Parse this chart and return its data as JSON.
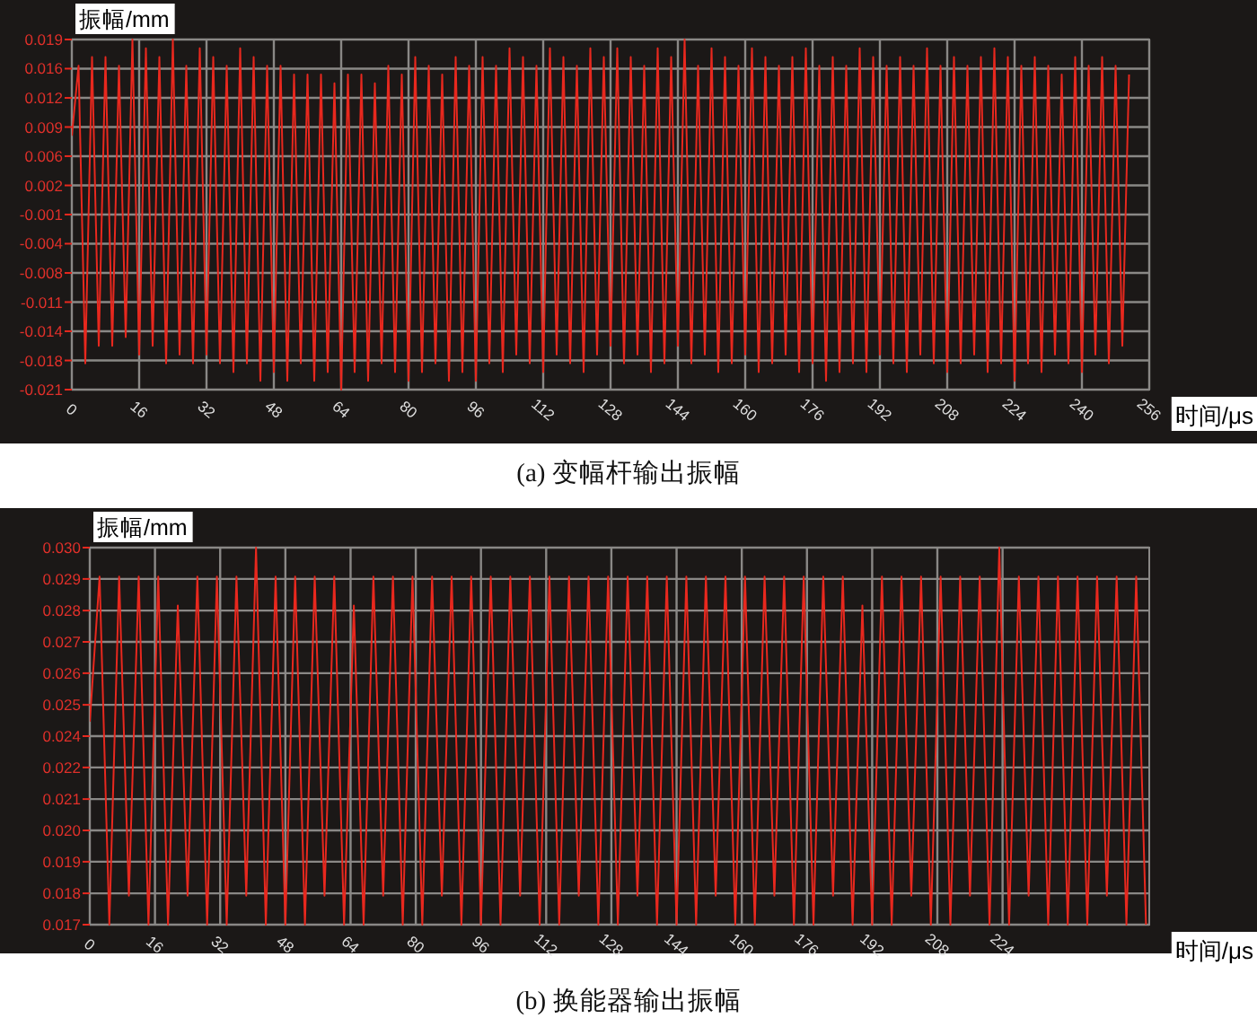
{
  "chart_data": [
    {
      "type": "line",
      "title": "(a) 变幅杆输出振幅",
      "xlabel": "时间/μs",
      "ylabel": "振幅/mm",
      "grid": true,
      "xlim": [
        0,
        256
      ],
      "ylim": [
        -0.021,
        0.019
      ],
      "xticks": [
        0,
        16,
        32,
        48,
        64,
        80,
        96,
        112,
        128,
        144,
        160,
        176,
        192,
        208,
        224,
        240,
        256
      ],
      "yticks": [
        {
          "value": -0.021,
          "label": "-0.021"
        },
        {
          "value": -0.01767,
          "label": "-0.018"
        },
        {
          "value": -0.01433,
          "label": "-0.014"
        },
        {
          "value": -0.011,
          "label": "-0.011"
        },
        {
          "value": -0.00767,
          "label": "-0.008"
        },
        {
          "value": -0.00433,
          "label": "-0.004"
        },
        {
          "value": -0.001,
          "label": "-0.001"
        },
        {
          "value": 0.00233,
          "label": "0.002"
        },
        {
          "value": 0.00567,
          "label": "0.006"
        },
        {
          "value": 0.009,
          "label": "0.009"
        },
        {
          "value": 0.01233,
          "label": "0.012"
        },
        {
          "value": 0.01567,
          "label": "0.016"
        },
        {
          "value": 0.019,
          "label": "0.019"
        }
      ],
      "x": [
        0,
        1.6,
        3.2,
        4.8,
        6.4,
        8,
        9.6,
        11.2,
        12.8,
        14.4,
        16,
        17.6,
        19.2,
        20.8,
        22.4,
        24,
        25.6,
        27.2,
        28.8,
        30.4,
        32,
        33.6,
        35.2,
        36.8,
        38.4,
        40,
        41.6,
        43.2,
        44.8,
        46.4,
        48,
        49.6,
        51.2,
        52.8,
        54.4,
        56,
        57.6,
        59.2,
        60.8,
        62.4,
        64,
        65.6,
        67.2,
        68.8,
        70.4,
        72,
        73.6,
        75.2,
        76.8,
        78.4,
        80,
        81.6,
        83.2,
        84.8,
        86.4,
        88,
        89.6,
        91.2,
        92.8,
        94.4,
        96,
        97.6,
        99.2,
        100.8,
        102.4,
        104,
        105.6,
        107.2,
        108.8,
        110.4,
        112,
        113.6,
        115.2,
        116.8,
        118.4,
        120,
        121.6,
        123.2,
        124.8,
        126.4,
        128,
        129.6,
        131.2,
        132.8,
        134.4,
        136,
        137.6,
        139.2,
        140.8,
        142.4,
        144,
        145.6,
        147.2,
        148.8,
        150.4,
        152,
        153.6,
        155.2,
        156.8,
        158.4,
        160,
        161.6,
        163.2,
        164.8,
        166.4,
        168,
        169.6,
        171.2,
        172.8,
        174.4,
        176,
        177.6,
        179.2,
        180.8,
        182.4,
        184,
        185.6,
        187.2,
        188.8,
        190.4,
        192,
        193.6,
        195.2,
        196.8,
        198.4,
        200,
        201.6,
        203.2,
        204.8,
        206.4,
        208,
        209.6,
        211.2,
        212.8,
        214.4,
        216,
        217.6,
        219.2,
        220.8,
        222.4,
        224,
        225.6,
        227.2,
        228.8,
        230.4,
        232,
        233.6,
        235.2,
        236.8,
        238.4,
        240,
        241.6,
        243.2,
        244.8,
        246.4,
        248,
        249.6,
        251.2
      ],
      "series": [
        {
          "color": "#e8281e",
          "values": [
            0.008,
            0.016,
            -0.018,
            0.017,
            -0.016,
            0.017,
            -0.016,
            0.016,
            -0.015,
            0.019,
            -0.017,
            0.018,
            -0.016,
            0.017,
            -0.018,
            0.019,
            -0.017,
            0.016,
            -0.018,
            0.018,
            -0.017,
            0.017,
            -0.018,
            0.016,
            -0.019,
            0.018,
            -0.018,
            0.017,
            -0.02,
            0.016,
            -0.019,
            0.016,
            -0.02,
            0.015,
            -0.018,
            0.015,
            -0.02,
            0.015,
            -0.019,
            0.014,
            -0.021,
            0.015,
            -0.019,
            0.015,
            -0.02,
            0.014,
            -0.018,
            0.016,
            -0.019,
            0.015,
            -0.02,
            0.017,
            -0.019,
            0.016,
            -0.018,
            0.015,
            -0.02,
            0.017,
            -0.019,
            0.016,
            -0.02,
            0.017,
            -0.018,
            0.016,
            -0.019,
            0.018,
            -0.017,
            0.017,
            -0.018,
            0.016,
            -0.019,
            0.018,
            -0.017,
            0.017,
            -0.018,
            0.016,
            -0.019,
            0.018,
            -0.017,
            0.017,
            -0.016,
            0.018,
            -0.018,
            0.017,
            -0.017,
            0.016,
            -0.019,
            0.018,
            -0.018,
            0.017,
            -0.016,
            0.019,
            -0.018,
            0.016,
            -0.017,
            0.018,
            -0.019,
            0.017,
            -0.018,
            0.016,
            -0.017,
            0.018,
            -0.019,
            0.017,
            -0.018,
            0.016,
            -0.017,
            0.017,
            -0.019,
            0.018,
            -0.018,
            0.016,
            -0.02,
            0.017,
            -0.019,
            0.016,
            -0.018,
            0.018,
            -0.019,
            0.017,
            -0.017,
            0.016,
            -0.018,
            0.017,
            -0.019,
            0.016,
            -0.017,
            0.018,
            -0.018,
            0.016,
            -0.019,
            0.017,
            -0.018,
            0.016,
            -0.017,
            0.017,
            -0.019,
            0.018,
            -0.018,
            0.017,
            -0.02,
            0.016,
            -0.018,
            0.017,
            -0.019,
            0.016,
            -0.017,
            0.015,
            -0.018,
            0.017,
            -0.019,
            0.016,
            -0.017,
            0.017,
            -0.018,
            0.016,
            -0.016,
            0.015
          ]
        }
      ]
    },
    {
      "type": "line",
      "title": "(b) 换能器输出振幅",
      "xlabel": "时间/μs",
      "ylabel": "振幅/mm",
      "grid": true,
      "xlim": [
        0,
        260
      ],
      "ylim": [
        0.017,
        0.03
      ],
      "xticks": [
        0,
        16,
        32,
        48,
        64,
        80,
        96,
        112,
        128,
        144,
        160,
        176,
        192,
        208,
        224
      ],
      "yticks": [
        {
          "value": 0.017,
          "label": "0.017"
        },
        {
          "value": 0.01808,
          "label": "0.018"
        },
        {
          "value": 0.01917,
          "label": "0.019"
        },
        {
          "value": 0.02025,
          "label": "0.020"
        },
        {
          "value": 0.02133,
          "label": "0.021"
        },
        {
          "value": 0.02242,
          "label": "0.022"
        },
        {
          "value": 0.0235,
          "label": "0.024"
        },
        {
          "value": 0.02458,
          "label": "0.025"
        },
        {
          "value": 0.02567,
          "label": "0.026"
        },
        {
          "value": 0.02675,
          "label": "0.027"
        },
        {
          "value": 0.02783,
          "label": "0.028"
        },
        {
          "value": 0.02892,
          "label": "0.029"
        },
        {
          "value": 0.03,
          "label": "0.030"
        }
      ],
      "x": [
        0,
        2.4,
        4.8,
        7.2,
        9.6,
        12,
        14.4,
        16.8,
        19.2,
        21.6,
        24,
        26.4,
        28.8,
        31.2,
        33.6,
        36,
        38.4,
        40.8,
        43.2,
        45.6,
        48,
        50.4,
        52.8,
        55.2,
        57.6,
        60,
        62.4,
        64.8,
        67.2,
        69.6,
        72,
        74.4,
        76.8,
        79.2,
        81.6,
        84,
        86.4,
        88.8,
        91.2,
        93.6,
        96,
        98.4,
        100.8,
        103.2,
        105.6,
        108,
        110.4,
        112.8,
        115.2,
        117.6,
        120,
        122.4,
        124.8,
        127.2,
        129.6,
        132,
        134.4,
        136.8,
        139.2,
        141.6,
        144,
        146.4,
        148.8,
        151.2,
        153.6,
        156,
        158.4,
        160.8,
        163.2,
        165.6,
        168,
        170.4,
        172.8,
        175.2,
        177.6,
        180,
        182.4,
        184.8,
        187.2,
        189.6,
        192,
        194.4,
        196.8,
        199.2,
        201.6,
        204,
        206.4,
        208.8,
        211.2,
        213.6,
        216,
        218.4,
        220.8,
        223.2,
        225.6,
        228,
        230.4,
        232.8,
        235.2,
        237.6,
        240,
        242.4,
        244.8,
        247.2,
        249.6,
        252,
        254.4,
        256.8,
        259.2
      ],
      "series": [
        {
          "color": "#e8281e",
          "values": [
            0.024,
            0.029,
            0.017,
            0.029,
            0.018,
            0.029,
            0.017,
            0.029,
            0.017,
            0.028,
            0.018,
            0.029,
            0.017,
            0.029,
            0.017,
            0.029,
            0.018,
            0.03,
            0.017,
            0.029,
            0.017,
            0.029,
            0.017,
            0.029,
            0.018,
            0.029,
            0.017,
            0.028,
            0.017,
            0.029,
            0.018,
            0.029,
            0.017,
            0.029,
            0.017,
            0.029,
            0.018,
            0.029,
            0.017,
            0.029,
            0.017,
            0.029,
            0.017,
            0.029,
            0.018,
            0.029,
            0.017,
            0.029,
            0.017,
            0.029,
            0.018,
            0.029,
            0.017,
            0.029,
            0.017,
            0.029,
            0.018,
            0.029,
            0.017,
            0.029,
            0.017,
            0.029,
            0.017,
            0.029,
            0.018,
            0.029,
            0.017,
            0.029,
            0.017,
            0.029,
            0.018,
            0.029,
            0.017,
            0.029,
            0.017,
            0.029,
            0.018,
            0.029,
            0.017,
            0.028,
            0.017,
            0.029,
            0.017,
            0.029,
            0.018,
            0.029,
            0.017,
            0.029,
            0.017,
            0.029,
            0.018,
            0.029,
            0.017,
            0.03,
            0.017,
            0.029,
            0.018,
            0.029,
            0.017,
            0.029,
            0.017,
            0.029,
            0.017,
            0.029,
            0.018,
            0.029,
            0.017,
            0.029,
            0.017
          ]
        }
      ]
    }
  ]
}
